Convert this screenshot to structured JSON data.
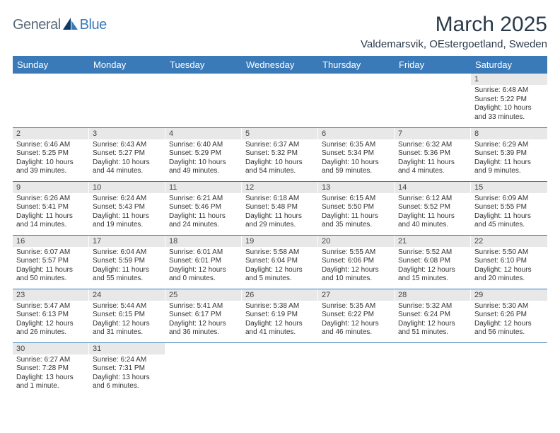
{
  "logo": {
    "text_a": "General",
    "text_b": "Blue"
  },
  "title": "March 2025",
  "location": "Valdemarsvik, OEstergoetland, Sweden",
  "colors": {
    "header_bg": "#3a7ab8",
    "header_text": "#ffffff",
    "daynum_bg": "#e8e8e8",
    "row_border": "#3a7ab8",
    "title_color": "#2a3a4a"
  },
  "weekdays": [
    "Sunday",
    "Monday",
    "Tuesday",
    "Wednesday",
    "Thursday",
    "Friday",
    "Saturday"
  ],
  "weeks": [
    [
      {
        "empty": true
      },
      {
        "empty": true
      },
      {
        "empty": true
      },
      {
        "empty": true
      },
      {
        "empty": true
      },
      {
        "empty": true
      },
      {
        "day": "1",
        "sunrise": "Sunrise: 6:48 AM",
        "sunset": "Sunset: 5:22 PM",
        "daylight": "Daylight: 10 hours and 33 minutes."
      }
    ],
    [
      {
        "day": "2",
        "sunrise": "Sunrise: 6:46 AM",
        "sunset": "Sunset: 5:25 PM",
        "daylight": "Daylight: 10 hours and 39 minutes."
      },
      {
        "day": "3",
        "sunrise": "Sunrise: 6:43 AM",
        "sunset": "Sunset: 5:27 PM",
        "daylight": "Daylight: 10 hours and 44 minutes."
      },
      {
        "day": "4",
        "sunrise": "Sunrise: 6:40 AM",
        "sunset": "Sunset: 5:29 PM",
        "daylight": "Daylight: 10 hours and 49 minutes."
      },
      {
        "day": "5",
        "sunrise": "Sunrise: 6:37 AM",
        "sunset": "Sunset: 5:32 PM",
        "daylight": "Daylight: 10 hours and 54 minutes."
      },
      {
        "day": "6",
        "sunrise": "Sunrise: 6:35 AM",
        "sunset": "Sunset: 5:34 PM",
        "daylight": "Daylight: 10 hours and 59 minutes."
      },
      {
        "day": "7",
        "sunrise": "Sunrise: 6:32 AM",
        "sunset": "Sunset: 5:36 PM",
        "daylight": "Daylight: 11 hours and 4 minutes."
      },
      {
        "day": "8",
        "sunrise": "Sunrise: 6:29 AM",
        "sunset": "Sunset: 5:39 PM",
        "daylight": "Daylight: 11 hours and 9 minutes."
      }
    ],
    [
      {
        "day": "9",
        "sunrise": "Sunrise: 6:26 AM",
        "sunset": "Sunset: 5:41 PM",
        "daylight": "Daylight: 11 hours and 14 minutes."
      },
      {
        "day": "10",
        "sunrise": "Sunrise: 6:24 AM",
        "sunset": "Sunset: 5:43 PM",
        "daylight": "Daylight: 11 hours and 19 minutes."
      },
      {
        "day": "11",
        "sunrise": "Sunrise: 6:21 AM",
        "sunset": "Sunset: 5:46 PM",
        "daylight": "Daylight: 11 hours and 24 minutes."
      },
      {
        "day": "12",
        "sunrise": "Sunrise: 6:18 AM",
        "sunset": "Sunset: 5:48 PM",
        "daylight": "Daylight: 11 hours and 29 minutes."
      },
      {
        "day": "13",
        "sunrise": "Sunrise: 6:15 AM",
        "sunset": "Sunset: 5:50 PM",
        "daylight": "Daylight: 11 hours and 35 minutes."
      },
      {
        "day": "14",
        "sunrise": "Sunrise: 6:12 AM",
        "sunset": "Sunset: 5:52 PM",
        "daylight": "Daylight: 11 hours and 40 minutes."
      },
      {
        "day": "15",
        "sunrise": "Sunrise: 6:09 AM",
        "sunset": "Sunset: 5:55 PM",
        "daylight": "Daylight: 11 hours and 45 minutes."
      }
    ],
    [
      {
        "day": "16",
        "sunrise": "Sunrise: 6:07 AM",
        "sunset": "Sunset: 5:57 PM",
        "daylight": "Daylight: 11 hours and 50 minutes."
      },
      {
        "day": "17",
        "sunrise": "Sunrise: 6:04 AM",
        "sunset": "Sunset: 5:59 PM",
        "daylight": "Daylight: 11 hours and 55 minutes."
      },
      {
        "day": "18",
        "sunrise": "Sunrise: 6:01 AM",
        "sunset": "Sunset: 6:01 PM",
        "daylight": "Daylight: 12 hours and 0 minutes."
      },
      {
        "day": "19",
        "sunrise": "Sunrise: 5:58 AM",
        "sunset": "Sunset: 6:04 PM",
        "daylight": "Daylight: 12 hours and 5 minutes."
      },
      {
        "day": "20",
        "sunrise": "Sunrise: 5:55 AM",
        "sunset": "Sunset: 6:06 PM",
        "daylight": "Daylight: 12 hours and 10 minutes."
      },
      {
        "day": "21",
        "sunrise": "Sunrise: 5:52 AM",
        "sunset": "Sunset: 6:08 PM",
        "daylight": "Daylight: 12 hours and 15 minutes."
      },
      {
        "day": "22",
        "sunrise": "Sunrise: 5:50 AM",
        "sunset": "Sunset: 6:10 PM",
        "daylight": "Daylight: 12 hours and 20 minutes."
      }
    ],
    [
      {
        "day": "23",
        "sunrise": "Sunrise: 5:47 AM",
        "sunset": "Sunset: 6:13 PM",
        "daylight": "Daylight: 12 hours and 26 minutes."
      },
      {
        "day": "24",
        "sunrise": "Sunrise: 5:44 AM",
        "sunset": "Sunset: 6:15 PM",
        "daylight": "Daylight: 12 hours and 31 minutes."
      },
      {
        "day": "25",
        "sunrise": "Sunrise: 5:41 AM",
        "sunset": "Sunset: 6:17 PM",
        "daylight": "Daylight: 12 hours and 36 minutes."
      },
      {
        "day": "26",
        "sunrise": "Sunrise: 5:38 AM",
        "sunset": "Sunset: 6:19 PM",
        "daylight": "Daylight: 12 hours and 41 minutes."
      },
      {
        "day": "27",
        "sunrise": "Sunrise: 5:35 AM",
        "sunset": "Sunset: 6:22 PM",
        "daylight": "Daylight: 12 hours and 46 minutes."
      },
      {
        "day": "28",
        "sunrise": "Sunrise: 5:32 AM",
        "sunset": "Sunset: 6:24 PM",
        "daylight": "Daylight: 12 hours and 51 minutes."
      },
      {
        "day": "29",
        "sunrise": "Sunrise: 5:30 AM",
        "sunset": "Sunset: 6:26 PM",
        "daylight": "Daylight: 12 hours and 56 minutes."
      }
    ],
    [
      {
        "day": "30",
        "sunrise": "Sunrise: 6:27 AM",
        "sunset": "Sunset: 7:28 PM",
        "daylight": "Daylight: 13 hours and 1 minute."
      },
      {
        "day": "31",
        "sunrise": "Sunrise: 6:24 AM",
        "sunset": "Sunset: 7:31 PM",
        "daylight": "Daylight: 13 hours and 6 minutes."
      },
      {
        "empty": true
      },
      {
        "empty": true
      },
      {
        "empty": true
      },
      {
        "empty": true
      },
      {
        "empty": true
      }
    ]
  ]
}
